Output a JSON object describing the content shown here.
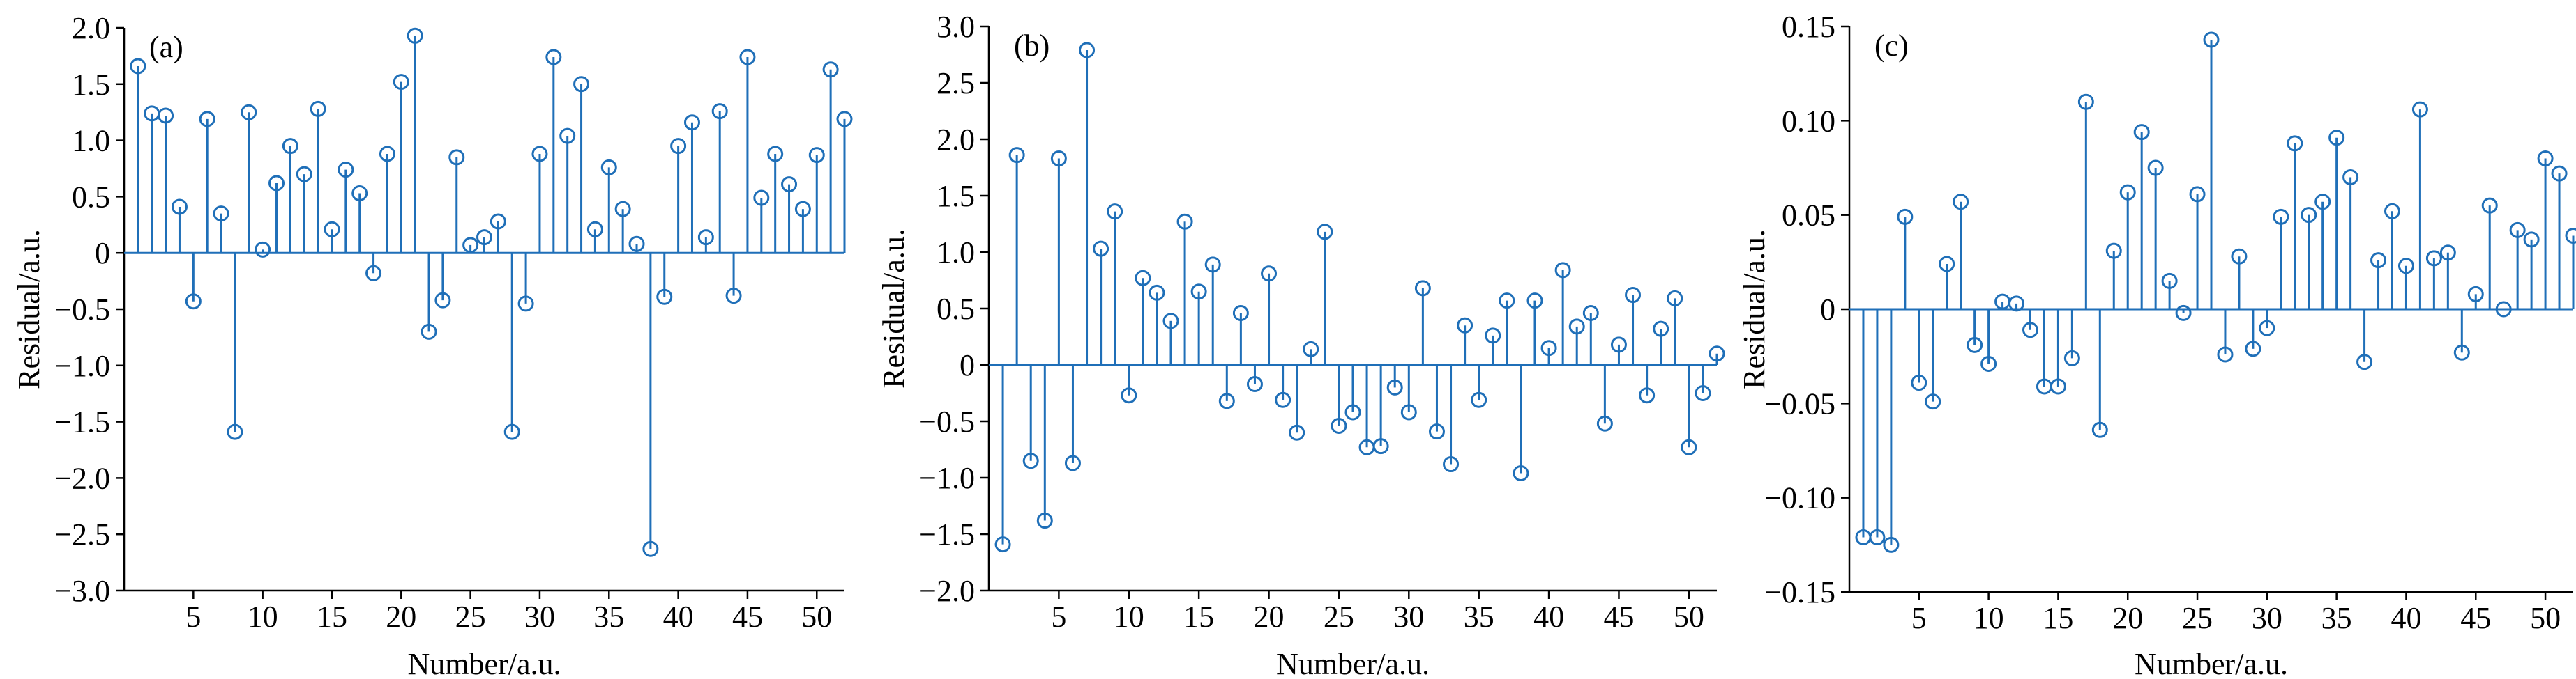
{
  "chart_data": [
    {
      "type": "stem",
      "panel_label": "(a)",
      "xlabel": "Number/a.u.",
      "ylabel": "Residual/a.u.",
      "xlim": [
        0,
        52
      ],
      "ylim": [
        -3.0,
        2.0
      ],
      "xticks": [
        5,
        10,
        15,
        20,
        25,
        30,
        35,
        40,
        45,
        50
      ],
      "xtick_labels": [
        "5",
        "10",
        "15",
        "20",
        "25",
        "30",
        "35",
        "40",
        "45",
        "50"
      ],
      "yticks": [
        -3.0,
        -2.5,
        -2.0,
        -1.5,
        -1.0,
        -0.5,
        0,
        0.5,
        1.0,
        1.5,
        2.0
      ],
      "ytick_labels": [
        "−3.0",
        "−2.5",
        "−2.0",
        "−1.5",
        "−1.0",
        "−0.5",
        "0",
        "0.5",
        "1.0",
        "1.5",
        "2.0"
      ],
      "color": "#1f6fb8",
      "x": [
        1,
        2,
        3,
        4,
        5,
        6,
        7,
        8,
        9,
        10,
        11,
        12,
        13,
        14,
        15,
        16,
        17,
        18,
        19,
        20,
        21,
        22,
        23,
        24,
        25,
        26,
        27,
        28,
        29,
        30,
        31,
        32,
        33,
        34,
        35,
        36,
        37,
        38,
        39,
        40,
        41,
        42,
        43,
        44,
        45,
        46,
        47,
        48,
        49,
        50,
        51,
        52
      ],
      "values": [
        1.66,
        1.24,
        1.22,
        0.41,
        -0.43,
        1.19,
        0.35,
        -1.59,
        1.25,
        0.03,
        0.62,
        0.95,
        0.7,
        1.28,
        0.21,
        0.74,
        0.53,
        -0.18,
        0.88,
        1.52,
        1.93,
        -0.7,
        -0.42,
        0.85,
        0.07,
        0.14,
        0.28,
        -1.59,
        -0.45,
        0.88,
        1.74,
        1.04,
        1.5,
        0.21,
        0.76,
        0.39,
        0.08,
        -2.63,
        -0.39,
        0.95,
        1.16,
        0.14,
        1.26,
        -0.38,
        1.74,
        0.49,
        0.88,
        0.61,
        0.39,
        0.87,
        1.63,
        1.19
      ]
    },
    {
      "type": "stem",
      "panel_label": "(b)",
      "xlabel": "Number/a.u.",
      "ylabel": "Residual/a.u.",
      "xlim": [
        0,
        52
      ],
      "ylim": [
        -2.0,
        3.0
      ],
      "xticks": [
        5,
        10,
        15,
        20,
        25,
        30,
        35,
        40,
        45,
        50
      ],
      "xtick_labels": [
        "5",
        "10",
        "15",
        "20",
        "25",
        "30",
        "35",
        "40",
        "45",
        "50"
      ],
      "yticks": [
        -2.0,
        -1.5,
        -1.0,
        -0.5,
        0,
        0.5,
        1.0,
        1.5,
        2.0,
        2.5,
        3.0
      ],
      "ytick_labels": [
        "−2.0",
        "−1.5",
        "−1.0",
        "−0.5",
        "0",
        "0.5",
        "1.0",
        "1.5",
        "2.0",
        "2.5",
        "3.0"
      ],
      "color": "#1f6fb8",
      "x": [
        1,
        2,
        3,
        4,
        5,
        6,
        7,
        8,
        9,
        10,
        11,
        12,
        13,
        14,
        15,
        16,
        17,
        18,
        19,
        20,
        21,
        22,
        23,
        24,
        25,
        26,
        27,
        28,
        29,
        30,
        31,
        32,
        33,
        34,
        35,
        36,
        37,
        38,
        39,
        40,
        41,
        42,
        43,
        44,
        45,
        46,
        47,
        48,
        49,
        50,
        51,
        52
      ],
      "values": [
        -1.59,
        1.86,
        -0.85,
        -1.38,
        1.83,
        -0.87,
        2.79,
        1.03,
        1.36,
        -0.27,
        0.77,
        0.64,
        0.39,
        1.27,
        0.65,
        0.89,
        -0.32,
        0.46,
        -0.17,
        0.81,
        -0.31,
        -0.6,
        0.14,
        1.18,
        -0.54,
        -0.42,
        -0.73,
        -0.72,
        -0.2,
        -0.42,
        0.68,
        -0.59,
        -0.88,
        0.35,
        -0.31,
        0.26,
        0.57,
        -0.96,
        0.57,
        0.15,
        0.84,
        0.34,
        0.46,
        -0.52,
        0.18,
        0.62,
        -0.27,
        0.32,
        0.59,
        -0.73,
        -0.25,
        0.1
      ]
    },
    {
      "type": "stem",
      "panel_label": "(c)",
      "xlabel": "Number/a.u.",
      "ylabel": "Residual/a.u.",
      "xlim": [
        0,
        52
      ],
      "ylim": [
        -0.15,
        0.15
      ],
      "xticks": [
        5,
        10,
        15,
        20,
        25,
        30,
        35,
        40,
        45,
        50
      ],
      "xtick_labels": [
        "5",
        "10",
        "15",
        "20",
        "25",
        "30",
        "35",
        "40",
        "45",
        "50"
      ],
      "yticks": [
        -0.15,
        -0.1,
        -0.05,
        0,
        0.05,
        0.1,
        0.15
      ],
      "ytick_labels": [
        "−0.15",
        "−0.10",
        "−0.05",
        "0",
        "0.05",
        "0.10",
        "0.15"
      ],
      "color": "#1f6fb8",
      "x": [
        1,
        2,
        3,
        4,
        5,
        6,
        7,
        8,
        9,
        10,
        11,
        12,
        13,
        14,
        15,
        16,
        17,
        18,
        19,
        20,
        21,
        22,
        23,
        24,
        25,
        26,
        27,
        28,
        29,
        30,
        31,
        32,
        33,
        34,
        35,
        36,
        37,
        38,
        39,
        40,
        41,
        42,
        43,
        44,
        45,
        46,
        47,
        48,
        49,
        50,
        51,
        52
      ],
      "values": [
        -0.121,
        -0.121,
        -0.125,
        0.049,
        -0.039,
        -0.049,
        0.024,
        0.057,
        -0.019,
        -0.029,
        0.004,
        0.003,
        -0.011,
        -0.041,
        -0.041,
        -0.026,
        0.11,
        -0.064,
        0.031,
        0.062,
        0.094,
        0.075,
        0.015,
        -0.002,
        0.061,
        0.143,
        -0.024,
        0.028,
        -0.021,
        -0.01,
        0.049,
        0.088,
        0.05,
        0.057,
        0.091,
        0.07,
        -0.028,
        0.026,
        0.052,
        0.023,
        0.106,
        0.027,
        0.03,
        -0.023,
        0.008,
        0.055,
        0.0,
        0.042,
        0.037,
        0.08,
        0.072,
        0.039
      ]
    }
  ]
}
